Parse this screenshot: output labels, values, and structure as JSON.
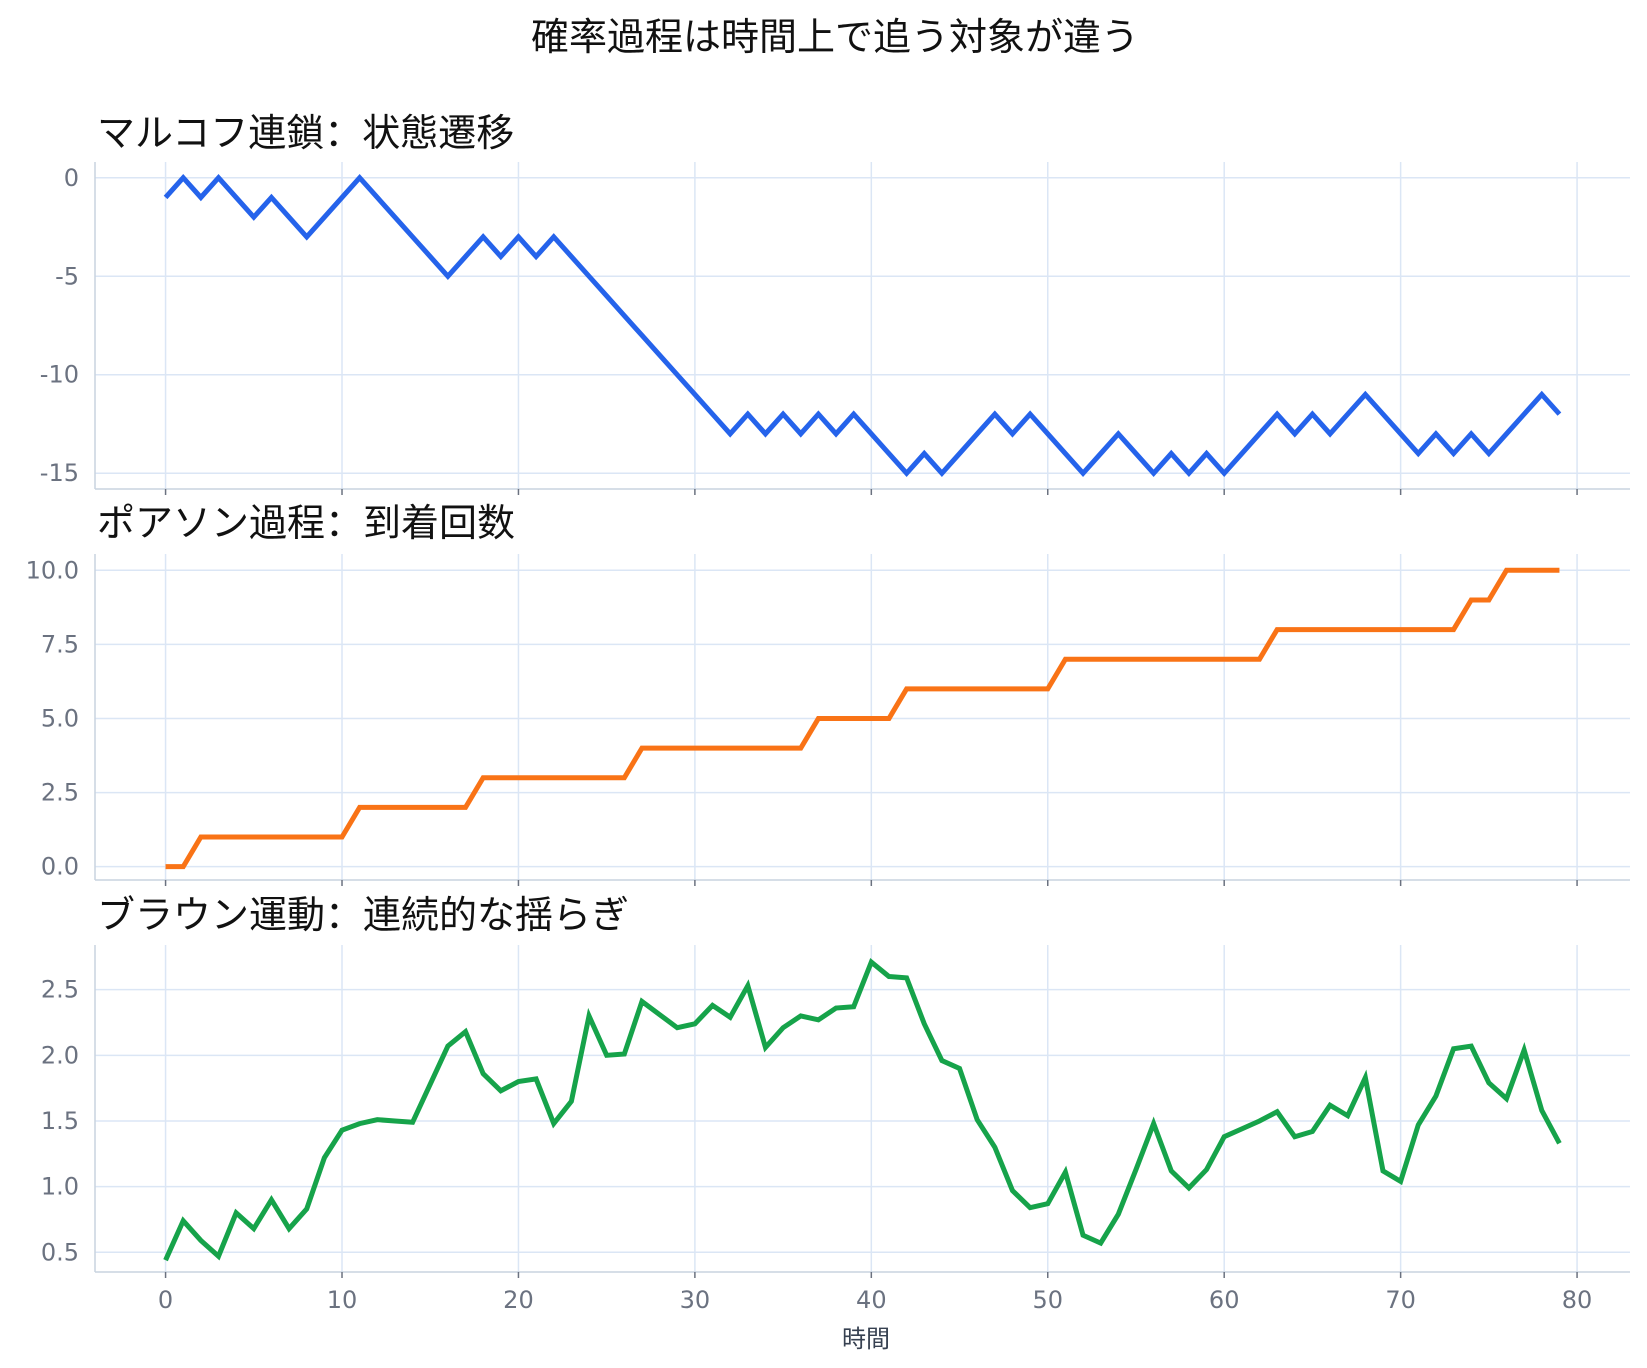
{
  "title": "確率過程は時間上で追う対象が違う",
  "xlabel": "時間",
  "chart_data": [
    {
      "type": "line",
      "title": "マルコフ連鎖：状態遷移",
      "color": "#2563eb",
      "x_start": 0,
      "xlim": [
        -4,
        83
      ],
      "ylim": [
        -15.8,
        0.8
      ],
      "yticks": [
        0,
        -5,
        -10,
        -15
      ],
      "ytick_labels": [
        "0",
        "-5",
        "-10",
        "-15"
      ],
      "series": [
        {
          "values": [
            -1,
            0,
            -1,
            0,
            -1,
            -2,
            -1,
            -2,
            -3,
            -2,
            -1,
            0,
            -1,
            -2,
            -3,
            -4,
            -5,
            -4,
            -3,
            -4,
            -3,
            -4,
            -3,
            -4,
            -5,
            -6,
            -7,
            -8,
            -9,
            -10,
            -11,
            -12,
            -13,
            -12,
            -13,
            -12,
            -13,
            -12,
            -13,
            -12,
            -13,
            -14,
            -15,
            -14,
            -15,
            -14,
            -13,
            -12,
            -13,
            -12,
            -13,
            -14,
            -15,
            -14,
            -13,
            -14,
            -15,
            -14,
            -15,
            -14,
            -15,
            -14,
            -13,
            -12,
            -13,
            -12,
            -13,
            -12,
            -11,
            -12,
            -13,
            -14,
            -13,
            -14,
            -13,
            -14,
            -13,
            -12,
            -11,
            -12
          ]
        }
      ]
    },
    {
      "type": "line",
      "title": "ポアソン過程：到着回数",
      "color": "#f97316",
      "x_start": 0,
      "xlim": [
        -4,
        83
      ],
      "ylim": [
        -0.45,
        10.55
      ],
      "yticks": [
        0,
        2.5,
        5,
        7.5,
        10
      ],
      "ytick_labels": [
        "0.0",
        "2.5",
        "5.0",
        "7.5",
        "10.0"
      ],
      "series": [
        {
          "values": [
            0,
            0,
            1,
            1,
            1,
            1,
            1,
            1,
            1,
            1,
            1,
            2,
            2,
            2,
            2,
            2,
            2,
            2,
            3,
            3,
            3,
            3,
            3,
            3,
            3,
            3,
            3,
            4,
            4,
            4,
            4,
            4,
            4,
            4,
            4,
            4,
            4,
            5,
            5,
            5,
            5,
            5,
            6,
            6,
            6,
            6,
            6,
            6,
            6,
            6,
            6,
            7,
            7,
            7,
            7,
            7,
            7,
            7,
            7,
            7,
            7,
            7,
            7,
            8,
            8,
            8,
            8,
            8,
            8,
            8,
            8,
            8,
            8,
            8,
            9,
            9,
            10,
            10,
            10,
            10
          ]
        }
      ]
    },
    {
      "type": "line",
      "title": "ブラウン運動：連続的な揺らぎ",
      "color": "#16a34a",
      "x_start": 0,
      "xlim": [
        -4,
        83
      ],
      "ylim": [
        0.35,
        2.84
      ],
      "yticks": [
        0.5,
        1.0,
        1.5,
        2.0,
        2.5
      ],
      "ytick_labels": [
        "0.5",
        "1.0",
        "1.5",
        "2.0",
        "2.5"
      ],
      "series": [
        {
          "values": [
            0.44,
            0.74,
            0.59,
            0.47,
            0.8,
            0.68,
            0.9,
            0.68,
            0.83,
            1.22,
            1.43,
            1.48,
            1.51,
            1.5,
            1.49,
            1.78,
            2.07,
            2.18,
            1.86,
            1.73,
            1.8,
            1.82,
            1.48,
            1.65,
            2.3,
            2.0,
            2.01,
            2.41,
            2.31,
            2.21,
            2.24,
            2.38,
            2.29,
            2.53,
            2.06,
            2.21,
            2.3,
            2.27,
            2.36,
            2.37,
            2.71,
            2.6,
            2.59,
            2.24,
            1.96,
            1.9,
            1.51,
            1.3,
            0.97,
            0.84,
            0.87,
            1.11,
            0.63,
            0.57,
            0.79,
            1.13,
            1.48,
            1.12,
            0.99,
            1.13,
            1.38,
            1.44,
            1.5,
            1.57,
            1.38,
            1.42,
            1.62,
            1.54,
            1.83,
            1.12,
            1.04,
            1.47,
            1.69,
            2.05,
            2.07,
            1.79,
            1.67,
            2.04,
            1.58,
            1.33
          ]
        }
      ]
    }
  ],
  "xticks": [
    0,
    10,
    20,
    30,
    40,
    50,
    60,
    70,
    80
  ],
  "xtick_labels": [
    "0",
    "10",
    "20",
    "30",
    "40",
    "50",
    "60",
    "70",
    "80"
  ]
}
